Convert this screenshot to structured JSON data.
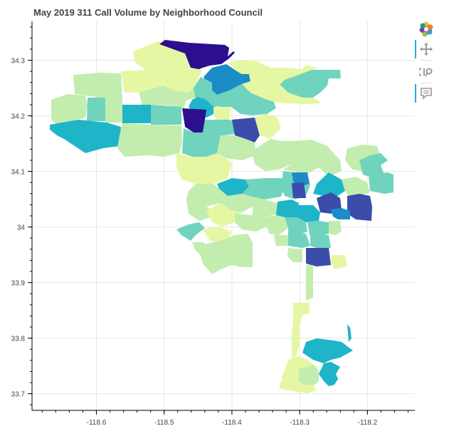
{
  "title": "May 2019 311 Call Volume by Neighborhood Council",
  "colors": {
    "scale": [
      "#ffffd9",
      "#edf8b1",
      "#c7e9b4",
      "#7fcdbb",
      "#41b6c4",
      "#1d91c0",
      "#225ea8",
      "#253494",
      "#081d58"
    ],
    "light_yellow": "#e6f7a3",
    "pale_green": "#c2edae",
    "mint": "#70d3bd",
    "teal": "#1fb5c8",
    "blue": "#1a8dc6",
    "dark_blue": "#3a4dab",
    "indigo": "#2c0f8f"
  },
  "toolbar": {
    "tools": [
      "bokeh-logo-icon",
      "pan-icon",
      "wheel-zoom-icon",
      "hover-icon"
    ]
  },
  "chart_data": {
    "type": "choropleth",
    "title": "May 2019 311 Call Volume by Neighborhood Council",
    "x_ticks": [
      "-118.6",
      "-118.5",
      "-118.4",
      "-118.3",
      "-118.2"
    ],
    "y_ticks": [
      "34.3",
      "34.2",
      "34.1",
      "34",
      "33.9",
      "33.8",
      "33.7"
    ],
    "xlim": [
      -118.695,
      -118.13
    ],
    "ylim": [
      33.67,
      34.37
    ],
    "grid": true,
    "xlabel": "",
    "ylabel": ""
  }
}
